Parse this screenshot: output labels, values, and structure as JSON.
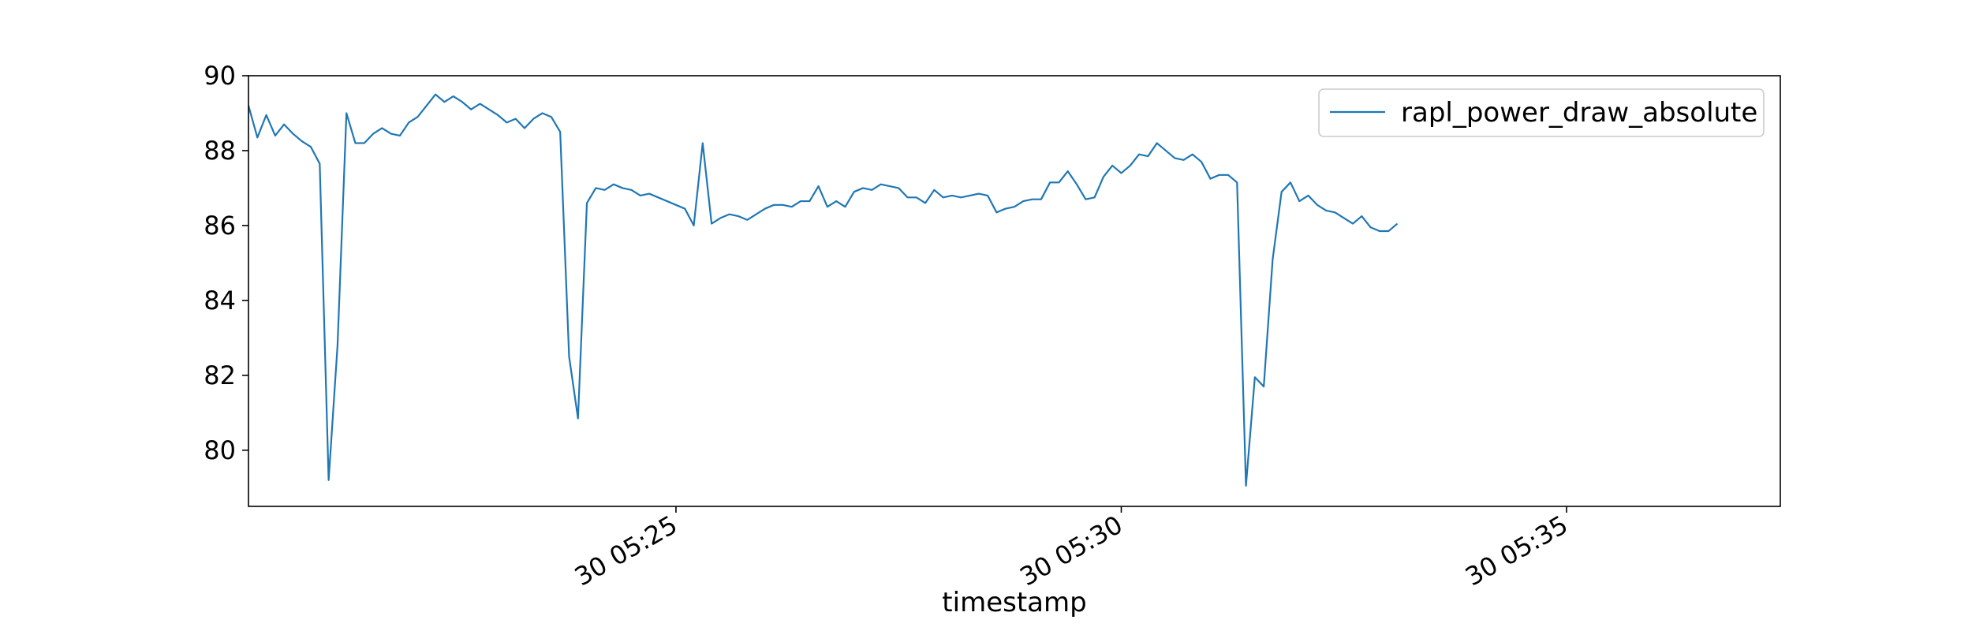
{
  "chart_data": {
    "type": "line",
    "title": "",
    "xlabel": "timestamp",
    "ylabel": "",
    "x_start": "05:20:12",
    "x_step_seconds": 6,
    "xlim": [
      "05:20:12",
      "05:37:24"
    ],
    "ylim": [
      78.5,
      90
    ],
    "x_ticks": [
      {
        "time": "05:25:00",
        "label": "30 05:25"
      },
      {
        "time": "05:30:00",
        "label": "30 05:30"
      },
      {
        "time": "05:35:00",
        "label": "30 05:35"
      }
    ],
    "y_ticks": [
      80,
      82,
      84,
      86,
      88,
      90
    ],
    "grid": false,
    "legend_position": "top-right",
    "series": [
      {
        "name": "rapl_power_draw_absolute",
        "color": "#1f77b4",
        "values": [
          89.2,
          88.35,
          88.95,
          88.4,
          88.7,
          88.45,
          88.25,
          88.1,
          87.65,
          79.2,
          82.8,
          89.0,
          88.2,
          88.2,
          88.45,
          88.6,
          88.45,
          88.4,
          88.75,
          88.9,
          89.2,
          89.5,
          89.3,
          89.45,
          89.3,
          89.1,
          89.25,
          89.1,
          88.95,
          88.75,
          88.85,
          88.6,
          88.85,
          89.0,
          88.9,
          88.5,
          82.5,
          80.85,
          86.6,
          87.0,
          86.95,
          87.1,
          87.0,
          86.95,
          86.8,
          86.85,
          86.75,
          86.65,
          86.55,
          86.45,
          86.0,
          88.2,
          86.05,
          86.2,
          86.3,
          86.25,
          86.15,
          86.3,
          86.45,
          86.55,
          86.55,
          86.5,
          86.65,
          86.65,
          87.05,
          86.5,
          86.65,
          86.5,
          86.9,
          87.0,
          86.95,
          87.1,
          87.05,
          87.0,
          86.75,
          86.75,
          86.6,
          86.95,
          86.75,
          86.8,
          86.75,
          86.8,
          86.85,
          86.8,
          86.35,
          86.45,
          86.5,
          86.65,
          86.7,
          86.7,
          87.15,
          87.15,
          87.45,
          87.1,
          86.7,
          86.75,
          87.3,
          87.6,
          87.4,
          87.6,
          87.9,
          87.85,
          88.2,
          88.0,
          87.8,
          87.75,
          87.9,
          87.7,
          87.25,
          87.35,
          87.35,
          87.15,
          79.05,
          81.95,
          81.7,
          85.1,
          86.9,
          87.15,
          86.65,
          86.8,
          86.55,
          86.4,
          86.35,
          86.2,
          86.05,
          86.25,
          85.95,
          85.85,
          85.85,
          86.05
        ]
      }
    ]
  }
}
